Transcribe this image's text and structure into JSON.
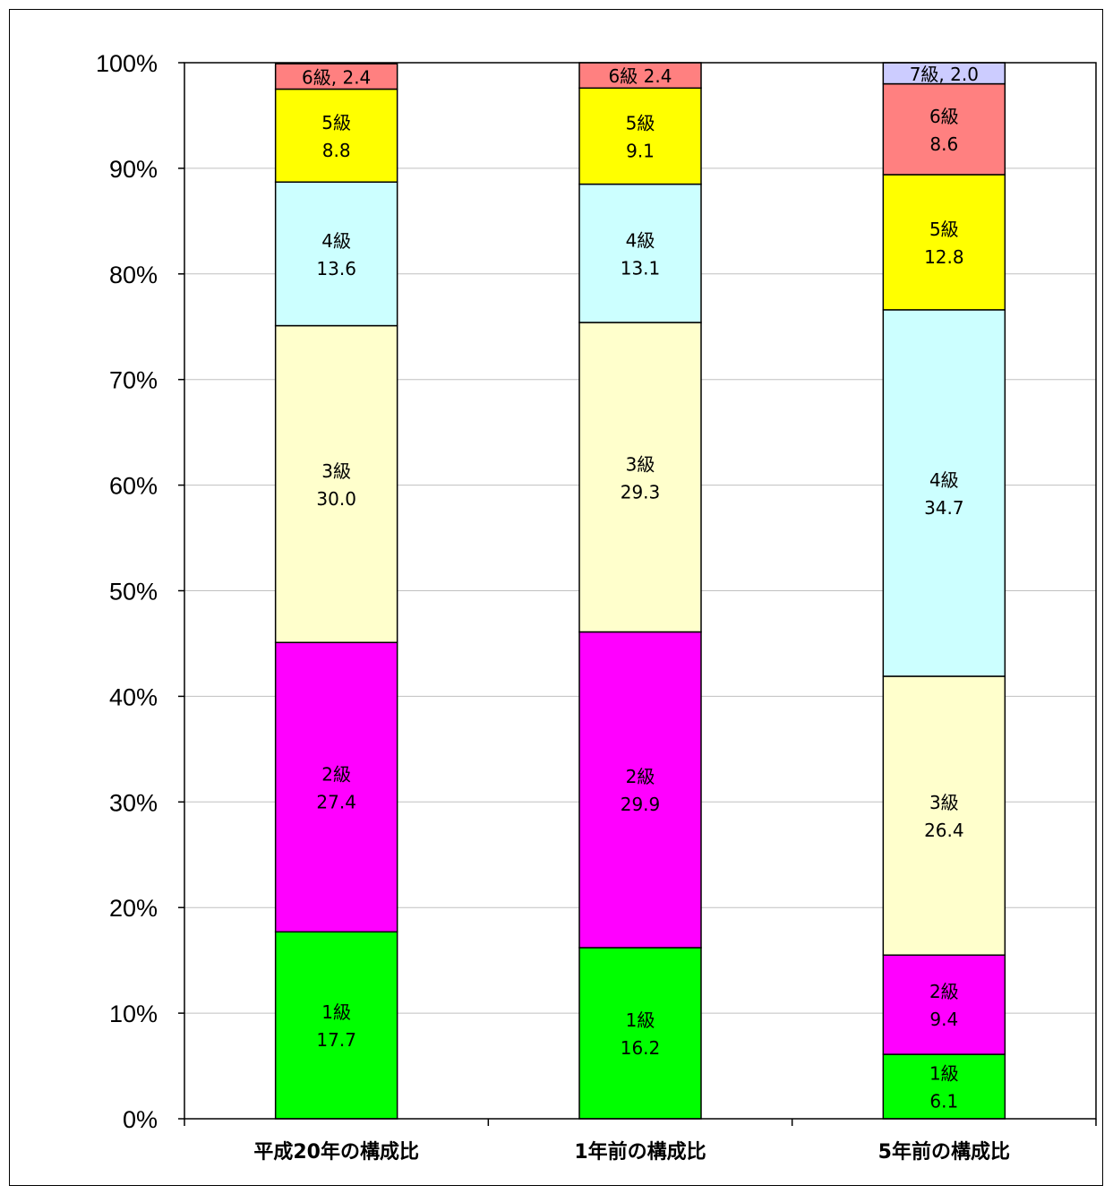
{
  "chart_data": {
    "type": "bar",
    "stacked": true,
    "percent": true,
    "title": "",
    "xlabel": "",
    "ylabel": "",
    "ylim": [
      0,
      100
    ],
    "y_ticks": [
      "0%",
      "10%",
      "20%",
      "30%",
      "40%",
      "50%",
      "60%",
      "70%",
      "80%",
      "90%",
      "100%"
    ],
    "grid": true,
    "legend": "none",
    "categories": [
      "平成20年の構成比",
      "1年前の構成比",
      "5年前の構成比"
    ],
    "series": [
      {
        "name": "1級",
        "color": "#00FF00",
        "values": [
          17.7,
          16.2,
          6.1
        ],
        "labels": [
          "1級\n17.7",
          "1級\n16.2",
          "1級\n6.1"
        ]
      },
      {
        "name": "2級",
        "color": "#FF00FF",
        "values": [
          27.4,
          29.9,
          9.4
        ],
        "labels": [
          "2級\n27.4",
          "2級\n29.9",
          "2級\n9.4"
        ]
      },
      {
        "name": "3級",
        "color": "#FFFFCC",
        "values": [
          30.0,
          29.3,
          26.4
        ],
        "labels": [
          "3級\n30.0",
          "3級\n29.3",
          "3級\n26.4"
        ]
      },
      {
        "name": "4級",
        "color": "#CCFFFF",
        "values": [
          13.6,
          13.1,
          34.7
        ],
        "labels": [
          "4級\n13.6",
          "4級\n13.1",
          "4級\n34.7"
        ]
      },
      {
        "name": "5級",
        "color": "#FFFF00",
        "values": [
          8.8,
          9.1,
          12.8
        ],
        "labels": [
          "5級\n8.8",
          "5級\n9.1",
          "5級\n12.8"
        ]
      },
      {
        "name": "6級",
        "color": "#FF8080",
        "values": [
          2.4,
          2.4,
          8.6
        ],
        "labels": [
          "6級, 2.4",
          "6級 2.4",
          "6級\n8.6"
        ]
      },
      {
        "name": "7級",
        "color": "#CCCCFF",
        "values": [
          0,
          0,
          2.0
        ],
        "labels": [
          "",
          "",
          "7級, 2.0"
        ]
      }
    ]
  }
}
